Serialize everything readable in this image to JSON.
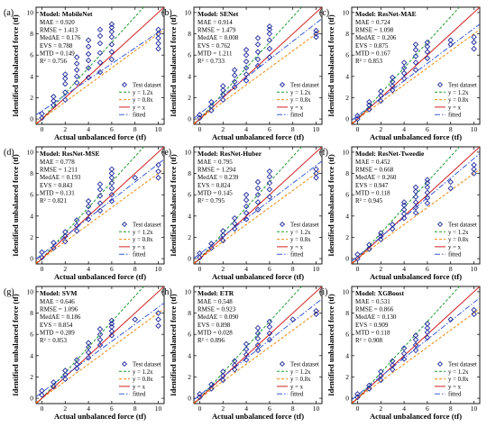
{
  "figure": {
    "xlabel": "Actual unbalanced force (tf)",
    "ylabel": "Identified unbalanced force (tf)",
    "colors": {
      "points": "#1f2a9a",
      "y12": "#1f9a2f",
      "y08": "#f08a10",
      "yx": "#d02020",
      "fitted": "#3b5bd6"
    },
    "marker": "diamond-open"
  },
  "chart_data": [
    {
      "type": "scatter",
      "panel": "(a)",
      "model_label": "Model: MobileNet",
      "metrics": [
        "MAE = 0.920",
        "RMSE = 1.413",
        "MedAE = 0.176",
        "EVS = 0.788",
        "MTD = 0.149",
        "R² = 0.756"
      ],
      "xlim": [
        -0.5,
        10.5
      ],
      "ylim": [
        -0.5,
        10.5
      ],
      "xticks": [
        "0",
        "2",
        "4",
        "6",
        "8",
        "10"
      ],
      "yticks": [
        "0",
        "2",
        "4",
        "6",
        "8",
        "10"
      ],
      "legend": [
        "Test dataset",
        "y = 1.2x",
        "y = 0.8x",
        "y = x",
        "fitted"
      ],
      "legend_position": "bottom-right",
      "fit": {
        "slope": 0.74,
        "intercept": 0.75
      },
      "x": [
        0,
        0,
        1,
        1,
        1,
        2,
        2,
        2,
        2,
        2,
        3,
        3,
        3,
        3,
        3,
        4,
        4,
        4,
        4,
        4,
        4,
        5,
        5,
        5,
        5,
        5,
        5,
        6,
        6,
        6,
        6,
        6,
        6,
        6,
        10,
        10,
        10,
        10,
        10
      ],
      "y": [
        0.1,
        0.5,
        1.3,
        1.7,
        2.1,
        1.8,
        2.5,
        3.3,
        3.8,
        4.2,
        3.4,
        4.0,
        4.6,
        5.2,
        5.8,
        3.9,
        4.8,
        5.5,
        6.1,
        6.8,
        7.4,
        4.4,
        5.3,
        6.2,
        7.1,
        7.8,
        8.4,
        5.6,
        6.3,
        7.0,
        7.7,
        8.2,
        8.6,
        8.9,
        6.6,
        7.1,
        7.6,
        8.0,
        8.4
      ]
    },
    {
      "type": "scatter",
      "panel": "(b)",
      "model_label": "Model: SENet",
      "metrics": [
        "MAE = 0.914",
        "RMSE = 1.479",
        "MedAE = 0.008",
        "EVS = 0.762",
        "MTD = 1.211",
        "R² = 0.733"
      ],
      "xlim": [
        -0.5,
        10.5
      ],
      "ylim": [
        -0.5,
        10.5
      ],
      "xticks": [
        "0",
        "2",
        "4",
        "6",
        "8",
        "10"
      ],
      "yticks": [
        "0",
        "2",
        "4",
        "6",
        "8",
        "10"
      ],
      "legend": [],
      "legend_position": "",
      "fit": {
        "slope": 0.85,
        "intercept": 0.5
      },
      "x": [
        0,
        0,
        1,
        1,
        1,
        2,
        2,
        2,
        2,
        3,
        3,
        3,
        3,
        4,
        4,
        4,
        4,
        4,
        4,
        5,
        5,
        5,
        5,
        5,
        6,
        6,
        6,
        6,
        6,
        6,
        10,
        10,
        10
      ],
      "y": [
        0.1,
        0.4,
        0.8,
        1.2,
        1.6,
        1.8,
        2.3,
        2.7,
        3.1,
        3.0,
        3.5,
        4.1,
        4.6,
        3.6,
        4.2,
        4.8,
        5.4,
        6.0,
        6.5,
        5.0,
        5.6,
        6.3,
        7.0,
        7.6,
        5.8,
        6.6,
        7.4,
        8.0,
        8.4,
        8.7,
        7.7,
        8.0,
        8.3
      ]
    },
    {
      "type": "scatter",
      "panel": "(c)",
      "model_label": "Model: ResNet-MAE",
      "metrics": [
        "MAE = 0.724",
        "RMSE = 1.098",
        "MedAE = 0.206",
        "EVS = 0.875",
        "MTD = 0.167",
        "R² = 0.853"
      ],
      "xlim": [
        -0.5,
        10.5
      ],
      "ylim": [
        -0.5,
        10.5
      ],
      "xticks": [
        "0",
        "2",
        "4",
        "6",
        "8",
        "10"
      ],
      "yticks": [
        "0",
        "2",
        "4",
        "6",
        "8",
        "10"
      ],
      "legend": [],
      "legend_position": "",
      "fit": {
        "slope": 0.82,
        "intercept": 0.3
      },
      "x": [
        0,
        0,
        1,
        1,
        1,
        2,
        2,
        2,
        3,
        3,
        3,
        3,
        4,
        4,
        4,
        4,
        5,
        5,
        5,
        5,
        5,
        6,
        6,
        6,
        6,
        8,
        8,
        10,
        10,
        10
      ],
      "y": [
        0.0,
        0.3,
        0.9,
        1.3,
        1.6,
        1.7,
        2.2,
        2.6,
        2.7,
        3.1,
        3.5,
        3.9,
        3.8,
        4.3,
        4.8,
        5.3,
        4.6,
        5.3,
        5.9,
        6.5,
        7.0,
        5.7,
        6.3,
        6.8,
        7.2,
        7.0,
        7.4,
        6.6,
        7.2,
        7.7
      ]
    },
    {
      "type": "scatter",
      "panel": "(d)",
      "model_label": "Model: ResNet-MSE",
      "metrics": [
        "MAE = 0.778",
        "RMSE = 1.211",
        "MedAE = 0.193",
        "EVS = 0.843",
        "MTD = 0.131",
        "R² = 0.821"
      ],
      "xlim": [
        -0.5,
        10.5
      ],
      "ylim": [
        -0.5,
        10.5
      ],
      "xticks": [
        "0",
        "2",
        "4",
        "6",
        "8",
        "10"
      ],
      "yticks": [
        "0",
        "2",
        "4",
        "6",
        "8",
        "10"
      ],
      "legend": [],
      "legend_position": "",
      "fit": {
        "slope": 0.85,
        "intercept": 0.4
      },
      "x": [
        0,
        0,
        1,
        1,
        2,
        2,
        2,
        3,
        3,
        3,
        4,
        4,
        4,
        4,
        5,
        5,
        5,
        5,
        5,
        6,
        6,
        6,
        6,
        6,
        6,
        6,
        8,
        10,
        10,
        10
      ],
      "y": [
        0.1,
        0.6,
        1.0,
        1.5,
        1.6,
        2.1,
        2.5,
        2.6,
        3.1,
        3.6,
        3.7,
        4.3,
        4.9,
        5.4,
        4.5,
        5.2,
        5.9,
        6.5,
        7.0,
        5.4,
        6.0,
        6.6,
        7.1,
        7.6,
        8.0,
        8.4,
        7.6,
        7.6,
        8.2,
        8.8
      ]
    },
    {
      "type": "scatter",
      "panel": "(e)",
      "model_label": "Model: ResNet-Huber",
      "metrics": [
        "MAE = 0.795",
        "RMSE = 1.294",
        "MedAE = 0.239",
        "EVS = 0.824",
        "MTD = 0.145",
        "R² = 0.795"
      ],
      "xlim": [
        -0.5,
        10.5
      ],
      "ylim": [
        -0.5,
        10.5
      ],
      "xticks": [
        "0",
        "2",
        "4",
        "6",
        "8",
        "10"
      ],
      "yticks": [
        "0",
        "2",
        "4",
        "6",
        "8",
        "10"
      ],
      "legend": [],
      "legend_position": "",
      "fit": {
        "slope": 0.83,
        "intercept": 0.45
      },
      "x": [
        0,
        0,
        1,
        1,
        2,
        2,
        2,
        3,
        3,
        3,
        4,
        4,
        4,
        4,
        4,
        5,
        5,
        5,
        5,
        5,
        6,
        6,
        6,
        6,
        6,
        10,
        10,
        10
      ],
      "y": [
        0.1,
        0.5,
        1.0,
        1.4,
        1.7,
        2.2,
        2.6,
        2.8,
        3.3,
        3.8,
        3.7,
        4.3,
        4.9,
        5.5,
        6.0,
        4.6,
        5.3,
        6.0,
        6.6,
        7.2,
        5.8,
        6.5,
        7.1,
        7.7,
        8.2,
        7.6,
        8.0,
        8.4
      ]
    },
    {
      "type": "scatter",
      "panel": "(f)",
      "model_label": "Model: ResNet-Tweedie",
      "metrics": [
        "MAE = 0.452",
        "RMSE = 0.668",
        "MedAE = 0.260",
        "EVS = 0.947",
        "MTD = 0.118",
        "R² = 0.945"
      ],
      "xlim": [
        -0.5,
        10.5
      ],
      "ylim": [
        -0.5,
        10.5
      ],
      "xticks": [
        "0",
        "2",
        "4",
        "6",
        "8",
        "10"
      ],
      "yticks": [
        "0",
        "2",
        "4",
        "6",
        "8",
        "10"
      ],
      "legend": [],
      "legend_position": "",
      "fit": {
        "slope": 0.92,
        "intercept": 0.2
      },
      "x": [
        0,
        0,
        1,
        1,
        2,
        2,
        2,
        3,
        3,
        4,
        4,
        4,
        4,
        4,
        5,
        5,
        5,
        5,
        5,
        5,
        6,
        6,
        6,
        6,
        6,
        6,
        8,
        8,
        10,
        10,
        10
      ],
      "y": [
        0.0,
        0.4,
        0.9,
        1.3,
        1.8,
        2.1,
        2.4,
        2.8,
        3.2,
        3.8,
        4.2,
        4.6,
        5.0,
        5.3,
        4.3,
        4.8,
        5.3,
        5.8,
        6.3,
        6.7,
        5.2,
        5.7,
        6.2,
        6.7,
        7.1,
        7.4,
        6.6,
        7.2,
        8.0,
        8.4,
        8.8
      ]
    },
    {
      "type": "scatter",
      "panel": "(g)",
      "model_label": "Model: SVM",
      "metrics": [
        "MAE = 0.646",
        "RMSE = 1.096",
        "MedAE = 0.186",
        "EVS = 0.854",
        "MTD = 0.289",
        "R² = 0.853"
      ],
      "xlim": [
        -0.5,
        10.5
      ],
      "ylim": [
        -0.5,
        10.5
      ],
      "xticks": [
        "0",
        "2",
        "4",
        "6",
        "8",
        "10"
      ],
      "yticks": [
        "0",
        "2",
        "4",
        "6",
        "8",
        "10"
      ],
      "legend": [],
      "legend_position": "",
      "fit": {
        "slope": 0.8,
        "intercept": 0.55
      },
      "x": [
        0,
        0,
        1,
        1,
        2,
        2,
        2,
        3,
        3,
        3,
        4,
        4,
        4,
        4,
        5,
        5,
        5,
        5,
        6,
        6,
        6,
        6,
        6,
        8,
        10,
        10,
        10
      ],
      "y": [
        0.3,
        0.7,
        1.1,
        1.5,
        1.8,
        2.2,
        2.6,
        2.8,
        3.2,
        3.6,
        3.8,
        4.3,
        4.8,
        5.2,
        5.0,
        5.5,
        6.0,
        6.5,
        5.9,
        6.3,
        6.7,
        7.0,
        7.3,
        7.4,
        6.8,
        7.4,
        8.0
      ]
    },
    {
      "type": "scatter",
      "panel": "(h)",
      "model_label": "Model: ETR",
      "metrics": [
        "MAE = 0.548",
        "RMSE = 0.923",
        "MedAE = 0.090",
        "EVS = 0.898",
        "MTD = 0.028",
        "R² = 0.896"
      ],
      "xlim": [
        -0.5,
        10.5
      ],
      "ylim": [
        -0.5,
        10.5
      ],
      "xticks": [
        "0",
        "2",
        "4",
        "6",
        "8",
        "10"
      ],
      "yticks": [
        "0",
        "2",
        "4",
        "6",
        "8",
        "10"
      ],
      "legend": [],
      "legend_position": "",
      "fit": {
        "slope": 0.86,
        "intercept": 0.3
      },
      "x": [
        0,
        0,
        1,
        1,
        2,
        2,
        2,
        3,
        3,
        3,
        4,
        4,
        4,
        4,
        5,
        5,
        5,
        5,
        5,
        6,
        6,
        6,
        6,
        8,
        10,
        10
      ],
      "y": [
        0.1,
        0.4,
        0.9,
        1.3,
        1.7,
        2.1,
        2.5,
        2.7,
        3.1,
        3.5,
        3.6,
        4.1,
        4.6,
        5.1,
        4.5,
        5.0,
        5.6,
        6.1,
        6.6,
        5.5,
        6.1,
        6.7,
        7.2,
        7.4,
        7.9,
        8.2
      ]
    },
    {
      "type": "scatter",
      "panel": "(i)",
      "model_label": "Model: XGBoost",
      "metrics": [
        "MAE = 0.531",
        "RMSE = 0.866",
        "MedAE = 0.130",
        "EVS = 0.909",
        "MTD = 0.118",
        "R² = 0.908"
      ],
      "xlim": [
        -0.5,
        10.5
      ],
      "ylim": [
        -0.5,
        10.5
      ],
      "xticks": [
        "0",
        "2",
        "4",
        "6",
        "8",
        "10"
      ],
      "yticks": [
        "0",
        "2",
        "4",
        "6",
        "8",
        "10"
      ],
      "legend": [],
      "legend_position": "",
      "fit": {
        "slope": 0.87,
        "intercept": 0.3
      },
      "x": [
        0,
        0,
        1,
        1,
        2,
        2,
        2,
        3,
        3,
        3,
        4,
        4,
        4,
        5,
        5,
        5,
        5,
        6,
        6,
        6,
        6,
        8,
        10,
        10
      ],
      "y": [
        0.1,
        0.4,
        0.9,
        1.2,
        1.7,
        2.1,
        2.5,
        2.7,
        3.1,
        3.5,
        3.7,
        4.2,
        4.7,
        4.5,
        5.0,
        5.5,
        5.9,
        5.7,
        6.2,
        6.6,
        7.0,
        7.4,
        7.9,
        8.3
      ]
    }
  ]
}
